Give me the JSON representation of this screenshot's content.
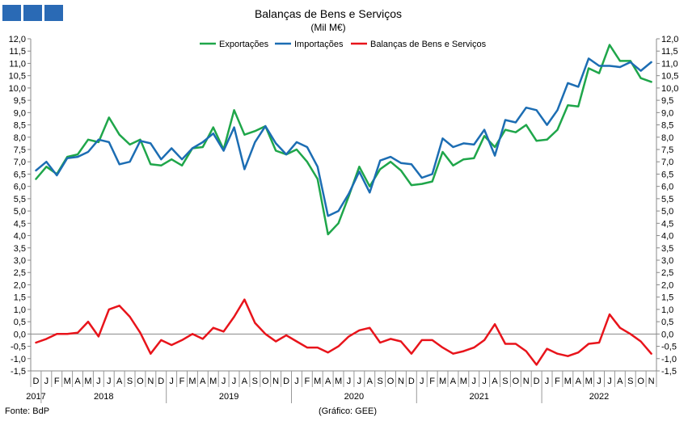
{
  "chart_data": {
    "type": "line",
    "title": "Balanças de Bens e Serviços",
    "subtitle": "(Mil M€)",
    "ylim": [
      -1.5,
      12.0
    ],
    "yticks": [
      -1.5,
      -1.0,
      -0.5,
      0.0,
      0.5,
      1.0,
      1.5,
      2.0,
      2.5,
      3.0,
      3.5,
      4.0,
      4.5,
      5.0,
      5.5,
      6.0,
      6.5,
      7.0,
      7.5,
      8.0,
      8.5,
      9.0,
      9.5,
      10.0,
      10.5,
      11.0,
      11.5,
      12.0
    ],
    "ytick_labels": [
      "-1,5",
      "-1,0",
      "-0,5",
      "0,0",
      "0,5",
      "1,0",
      "1,5",
      "2,0",
      "2,5",
      "3,0",
      "3,5",
      "4,0",
      "4,5",
      "5,0",
      "5,5",
      "6,0",
      "6,5",
      "7,0",
      "7,5",
      "8,0",
      "8,5",
      "9,0",
      "9,5",
      "10,0",
      "10,5",
      "11,0",
      "11,5",
      "12,0"
    ],
    "x": [
      "2017-12",
      "2018-01",
      "2018-02",
      "2018-03",
      "2018-04",
      "2018-05",
      "2018-06",
      "2018-07",
      "2018-08",
      "2018-09",
      "2018-10",
      "2018-11",
      "2018-12",
      "2019-01",
      "2019-02",
      "2019-03",
      "2019-04",
      "2019-05",
      "2019-06",
      "2019-07",
      "2019-08",
      "2019-09",
      "2019-10",
      "2019-11",
      "2019-12",
      "2020-01",
      "2020-02",
      "2020-03",
      "2020-04",
      "2020-05",
      "2020-06",
      "2020-07",
      "2020-08",
      "2020-09",
      "2020-10",
      "2020-11",
      "2020-12",
      "2021-01",
      "2021-02",
      "2021-03",
      "2021-04",
      "2021-05",
      "2021-06",
      "2021-07",
      "2021-08",
      "2021-09",
      "2021-10",
      "2021-11",
      "2021-12",
      "2022-01",
      "2022-02",
      "2022-03",
      "2022-04",
      "2022-05",
      "2022-06",
      "2022-07",
      "2022-08",
      "2022-09",
      "2022-10",
      "2022-11"
    ],
    "month_labels": [
      "D",
      "J",
      "F",
      "M",
      "A",
      "M",
      "J",
      "J",
      "A",
      "S",
      "O",
      "N",
      "D",
      "J",
      "F",
      "M",
      "A",
      "M",
      "J",
      "J",
      "A",
      "S",
      "O",
      "N",
      "D",
      "J",
      "F",
      "M",
      "A",
      "M",
      "J",
      "J",
      "A",
      "S",
      "O",
      "N",
      "D",
      "J",
      "F",
      "M",
      "A",
      "M",
      "J",
      "J",
      "A",
      "S",
      "O",
      "N",
      "D",
      "J",
      "F",
      "M",
      "A",
      "M",
      "J",
      "J",
      "A",
      "S",
      "O",
      "N"
    ],
    "years": [
      {
        "label": "2017",
        "start": 0,
        "end": 0
      },
      {
        "label": "2018",
        "start": 1,
        "end": 12
      },
      {
        "label": "2019",
        "start": 13,
        "end": 24
      },
      {
        "label": "2020",
        "start": 25,
        "end": 36
      },
      {
        "label": "2021",
        "start": 37,
        "end": 48
      },
      {
        "label": "2022",
        "start": 49,
        "end": 59
      }
    ],
    "series": [
      {
        "name": "Exportações",
        "color": "#1fa64a",
        "values": [
          6.3,
          6.8,
          6.5,
          7.2,
          7.3,
          7.9,
          7.8,
          8.8,
          8.1,
          7.7,
          7.9,
          6.9,
          6.85,
          7.1,
          6.85,
          7.55,
          7.6,
          8.4,
          7.5,
          9.1,
          8.1,
          8.25,
          8.45,
          7.45,
          7.3,
          7.5,
          7.0,
          6.3,
          4.05,
          4.5,
          5.6,
          6.8,
          6.0,
          6.7,
          7.0,
          6.65,
          6.05,
          6.1,
          6.2,
          7.4,
          6.85,
          7.1,
          7.15,
          8.05,
          7.6,
          8.3,
          8.2,
          8.5,
          7.85,
          7.9,
          8.3,
          9.3,
          9.25,
          10.8,
          10.6,
          11.75,
          11.1,
          11.1,
          10.4,
          10.25
        ]
      },
      {
        "name": "Importações",
        "color": "#1c6db3",
        "values": [
          6.65,
          7.0,
          6.45,
          7.15,
          7.2,
          7.4,
          7.9,
          7.8,
          6.9,
          7.0,
          7.85,
          7.75,
          7.1,
          7.55,
          7.1,
          7.55,
          7.8,
          8.15,
          7.45,
          8.4,
          6.7,
          7.8,
          8.45,
          7.75,
          7.3,
          7.8,
          7.6,
          6.8,
          4.8,
          5.0,
          5.7,
          6.6,
          5.75,
          7.05,
          7.2,
          6.95,
          6.9,
          6.35,
          6.5,
          7.95,
          7.6,
          7.75,
          7.7,
          8.3,
          7.25,
          8.7,
          8.6,
          9.2,
          9.1,
          8.5,
          9.1,
          10.2,
          10.05,
          11.2,
          10.9,
          10.9,
          10.85,
          11.05,
          10.7,
          11.05
        ]
      },
      {
        "name": "Balanças de Bens e Serviços",
        "color": "#e8141b",
        "values": [
          -0.35,
          -0.2,
          0.0,
          0.0,
          0.05,
          0.5,
          -0.1,
          1.0,
          1.15,
          0.7,
          0.05,
          -0.8,
          -0.25,
          -0.45,
          -0.25,
          0.0,
          -0.2,
          0.25,
          0.1,
          0.7,
          1.4,
          0.45,
          0.0,
          -0.3,
          -0.05,
          -0.3,
          -0.55,
          -0.55,
          -0.75,
          -0.5,
          -0.1,
          0.15,
          0.25,
          -0.35,
          -0.2,
          -0.3,
          -0.8,
          -0.25,
          -0.25,
          -0.55,
          -0.8,
          -0.7,
          -0.55,
          -0.25,
          0.4,
          -0.4,
          -0.4,
          -0.7,
          -1.25,
          -0.6,
          -0.8,
          -0.9,
          -0.75,
          -0.4,
          -0.35,
          0.8,
          0.25,
          0.0,
          -0.3,
          -0.8
        ]
      }
    ],
    "grid": false,
    "legend_position": "top-center"
  },
  "footer": {
    "source": "Fonte: BdP",
    "credit": "(Gráfico: GEE)"
  }
}
